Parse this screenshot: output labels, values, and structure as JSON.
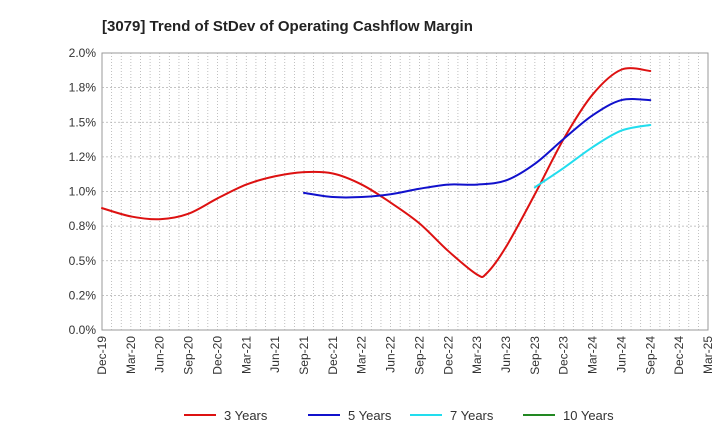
{
  "chart_data": {
    "type": "line",
    "title": "[3079]  Trend of StDev of Operating Cashflow Margin",
    "xlabel": "",
    "ylabel": "",
    "categories": [
      "Dec-19",
      "Mar-20",
      "Jun-20",
      "Sep-20",
      "Dec-20",
      "Mar-21",
      "Jun-21",
      "Sep-21",
      "Dec-21",
      "Mar-22",
      "Jun-22",
      "Sep-22",
      "Dec-22",
      "Mar-23",
      "Jun-23",
      "Sep-23",
      "Dec-23",
      "Mar-24",
      "Jun-24",
      "Sep-24",
      "Dec-24",
      "Mar-25"
    ],
    "y_ticks": [
      "0.0%",
      "0.2%",
      "0.5%",
      "0.8%",
      "1.0%",
      "1.2%",
      "1.5%",
      "1.8%",
      "2.0%"
    ],
    "ylim": [
      0,
      2.0
    ],
    "grid": true,
    "legend_position": "bottom",
    "series": [
      {
        "name": "3 Years",
        "color": "#dd1111",
        "points": [
          [
            "Dec-19",
            0.88
          ],
          [
            "Mar-20",
            0.82
          ],
          [
            "Jun-20",
            0.8
          ],
          [
            "Sep-20",
            0.84
          ],
          [
            "Dec-20",
            0.95
          ],
          [
            "Mar-21",
            1.05
          ],
          [
            "Jun-21",
            1.11
          ],
          [
            "Sep-21",
            1.14
          ],
          [
            "Dec-21",
            1.13
          ],
          [
            "Mar-22",
            1.05
          ],
          [
            "Jun-22",
            0.92
          ],
          [
            "Sep-22",
            0.77
          ],
          [
            "Dec-22",
            0.57
          ],
          [
            "Mar-23",
            0.4
          ],
          [
            "Apr-23",
            0.41
          ],
          [
            "Jun-23",
            0.6
          ],
          [
            "Sep-23",
            0.98
          ],
          [
            "Dec-23",
            1.38
          ],
          [
            "Mar-24",
            1.7
          ],
          [
            "Jun-24",
            1.88
          ],
          [
            "Sep-24",
            1.87
          ]
        ]
      },
      {
        "name": "5 Years",
        "color": "#1111cc",
        "points": [
          [
            "Sep-21",
            0.99
          ],
          [
            "Dec-21",
            0.96
          ],
          [
            "Mar-22",
            0.96
          ],
          [
            "Jun-22",
            0.98
          ],
          [
            "Sep-22",
            1.02
          ],
          [
            "Dec-22",
            1.05
          ],
          [
            "Mar-23",
            1.05
          ],
          [
            "Jun-23",
            1.08
          ],
          [
            "Sep-23",
            1.2
          ],
          [
            "Dec-23",
            1.38
          ],
          [
            "Mar-24",
            1.55
          ],
          [
            "Jun-24",
            1.66
          ],
          [
            "Sep-24",
            1.66
          ]
        ]
      },
      {
        "name": "7 Years",
        "color": "#22ddee",
        "points": [
          [
            "Sep-23",
            1.03
          ],
          [
            "Dec-23",
            1.17
          ],
          [
            "Mar-24",
            1.32
          ],
          [
            "Jun-24",
            1.44
          ],
          [
            "Sep-24",
            1.48
          ]
        ]
      },
      {
        "name": "10 Years",
        "color": "#228822",
        "points": []
      }
    ]
  }
}
